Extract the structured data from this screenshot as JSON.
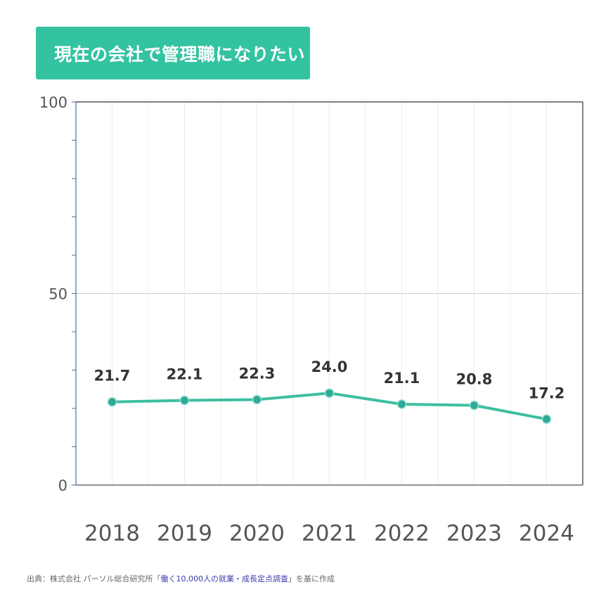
{
  "header": {
    "title": "現在の会社で管理職になりたい"
  },
  "colors": {
    "accent": "#33c3a1",
    "line": "#3dbf9f",
    "marker": "#2fa897",
    "link": "#3b3bb0"
  },
  "chart_data": {
    "type": "line",
    "title": "現在の会社で管理職になりたい",
    "categories": [
      "2018",
      "2019",
      "2020",
      "2021",
      "2022",
      "2023",
      "2024"
    ],
    "series": [
      {
        "values": [
          21.7,
          22.1,
          22.3,
          24.0,
          21.1,
          20.8,
          17.2
        ]
      }
    ],
    "data_labels": [
      "21.7",
      "22.1",
      "22.3",
      "24.0",
      "21.1",
      "20.8",
      "17.2"
    ],
    "y_ticks": [
      "0",
      "50",
      "100"
    ],
    "ylim": [
      0,
      100
    ],
    "xlabel": "",
    "ylabel": "",
    "grid": true,
    "legend": "none"
  },
  "footer": {
    "prefix": "出典：株式会社 パーソル総合研究所「",
    "link": "働く10,000人の就業・成長定点調査",
    "suffix": "」を基に作成"
  }
}
